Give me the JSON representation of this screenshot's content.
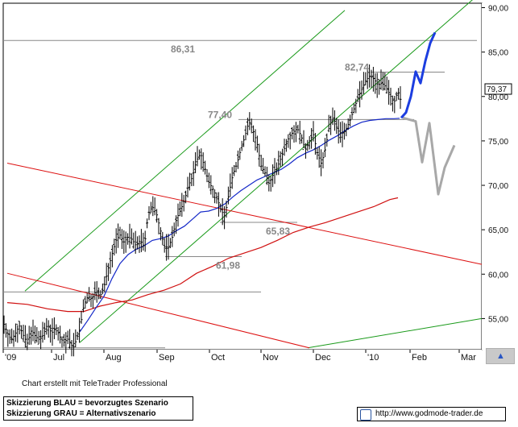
{
  "chart_data": {
    "type": "candlestick",
    "months": [
      "'09",
      "Jul",
      "Aug",
      "Sep",
      "Oct",
      "Nov",
      "Dec",
      "'10",
      "Feb",
      "Mar"
    ],
    "y_ticks": [
      "90,00",
      "85,00",
      "80,00",
      "75,00",
      "70,00",
      "65,00",
      "60,00",
      "55,00"
    ],
    "ylim": [
      51.5,
      90.5
    ],
    "last_price": "79,37",
    "levels": [
      {
        "label": "86,31",
        "value": 86.31
      },
      {
        "label": "82,74",
        "value": 82.74
      },
      {
        "label": "77,40",
        "value": 77.4
      },
      {
        "label": "65,83",
        "value": 65.83
      },
      {
        "label": "61,98",
        "value": 61.98
      }
    ],
    "support_line_value": 58.0,
    "bottom_line_value": 51.7,
    "ohlc_close_path": [
      [
        0,
        54.6
      ],
      [
        5,
        53.4
      ],
      [
        10,
        52.6
      ],
      [
        15,
        53.3
      ],
      [
        20,
        54.2
      ],
      [
        25,
        53.1
      ],
      [
        30,
        52.2
      ],
      [
        35,
        53.7
      ],
      [
        40,
        53.0
      ],
      [
        45,
        52.6
      ],
      [
        50,
        53.2
      ],
      [
        55,
        54.4
      ],
      [
        60,
        53.3
      ],
      [
        65,
        54.1
      ],
      [
        70,
        53.0
      ],
      [
        75,
        52.3
      ],
      [
        80,
        52.7
      ],
      [
        85,
        52.0
      ],
      [
        90,
        52.4
      ],
      [
        95,
        53.8
      ],
      [
        100,
        56.5
      ],
      [
        105,
        57.5
      ],
      [
        110,
        57.2
      ],
      [
        115,
        58.1
      ],
      [
        120,
        57.5
      ],
      [
        125,
        58.5
      ],
      [
        130,
        60.5
      ],
      [
        135,
        62.2
      ],
      [
        140,
        63.8
      ],
      [
        145,
        64.4
      ],
      [
        150,
        63.6
      ],
      [
        155,
        64.2
      ],
      [
        160,
        63.9
      ],
      [
        165,
        63.2
      ],
      [
        170,
        63.8
      ],
      [
        175,
        63.1
      ],
      [
        180,
        66.8
      ],
      [
        185,
        67.6
      ],
      [
        190,
        66.9
      ],
      [
        195,
        65.0
      ],
      [
        200,
        63.1
      ],
      [
        205,
        63.0
      ],
      [
        210,
        64.2
      ],
      [
        215,
        66.2
      ],
      [
        220,
        67.2
      ],
      [
        225,
        68.3
      ],
      [
        230,
        70.0
      ],
      [
        235,
        71.0
      ],
      [
        240,
        72.8
      ],
      [
        245,
        73.6
      ],
      [
        250,
        72.0
      ],
      [
        255,
        70.4
      ],
      [
        260,
        69.6
      ],
      [
        265,
        68.7
      ],
      [
        270,
        67.3
      ],
      [
        275,
        66.5
      ],
      [
        280,
        69.0
      ],
      [
        285,
        71.2
      ],
      [
        290,
        72.4
      ],
      [
        295,
        74.1
      ],
      [
        300,
        75.5
      ],
      [
        305,
        77.2
      ],
      [
        310,
        76.2
      ],
      [
        315,
        74.8
      ],
      [
        320,
        72.2
      ],
      [
        325,
        71.4
      ],
      [
        330,
        70.2
      ],
      [
        335,
        71.2
      ],
      [
        340,
        72.0
      ],
      [
        345,
        73.1
      ],
      [
        350,
        74.4
      ],
      [
        355,
        75.5
      ],
      [
        360,
        76.0
      ],
      [
        365,
        76.4
      ],
      [
        370,
        75.5
      ],
      [
        375,
        74.0
      ],
      [
        380,
        75.0
      ],
      [
        385,
        75.7
      ],
      [
        390,
        73.6
      ],
      [
        395,
        72.4
      ],
      [
        400,
        74.2
      ],
      [
        405,
        76.8
      ],
      [
        410,
        77.6
      ],
      [
        415,
        76.2
      ],
      [
        420,
        75.8
      ],
      [
        425,
        76.2
      ],
      [
        430,
        77.2
      ],
      [
        435,
        78.5
      ],
      [
        440,
        79.8
      ],
      [
        445,
        80.8
      ],
      [
        450,
        81.8
      ],
      [
        455,
        82.3
      ],
      [
        460,
        82.0
      ],
      [
        465,
        81.3
      ],
      [
        470,
        81.5
      ],
      [
        475,
        81.1
      ],
      [
        480,
        80.2
      ],
      [
        485,
        79.3
      ],
      [
        490,
        80.6
      ],
      [
        494,
        79.37
      ]
    ],
    "ma_short": [
      [
        95,
        53.5
      ],
      [
        105,
        54.8
      ],
      [
        115,
        56.2
      ],
      [
        125,
        57.5
      ],
      [
        135,
        59.5
      ],
      [
        145,
        61.2
      ],
      [
        155,
        62.2
      ],
      [
        165,
        62.8
      ],
      [
        175,
        63.2
      ],
      [
        185,
        63.8
      ],
      [
        195,
        64.0
      ],
      [
        205,
        64.3
      ],
      [
        215,
        64.9
      ],
      [
        225,
        65.4
      ],
      [
        235,
        66.2
      ],
      [
        245,
        67.0
      ],
      [
        255,
        67.1
      ],
      [
        265,
        67.4
      ],
      [
        275,
        67.9
      ],
      [
        285,
        68.7
      ],
      [
        295,
        69.4
      ],
      [
        305,
        70.0
      ],
      [
        315,
        70.6
      ],
      [
        325,
        71.0
      ],
      [
        335,
        71.4
      ],
      [
        345,
        71.8
      ],
      [
        355,
        72.4
      ],
      [
        365,
        73.1
      ],
      [
        375,
        73.6
      ],
      [
        385,
        74.0
      ],
      [
        395,
        74.5
      ],
      [
        405,
        75.1
      ],
      [
        415,
        75.6
      ],
      [
        425,
        76.2
      ],
      [
        435,
        76.7
      ],
      [
        445,
        77.1
      ],
      [
        455,
        77.3
      ],
      [
        465,
        77.4
      ],
      [
        475,
        77.5
      ],
      [
        485,
        77.5
      ],
      [
        492,
        77.55
      ]
    ],
    "ma_long": [
      [
        5,
        56.8
      ],
      [
        30,
        56.6
      ],
      [
        55,
        56.1
      ],
      [
        80,
        55.8
      ],
      [
        100,
        55.8
      ],
      [
        120,
        56.4
      ],
      [
        140,
        56.8
      ],
      [
        160,
        57.1
      ],
      [
        180,
        57.7
      ],
      [
        200,
        58.2
      ],
      [
        220,
        58.9
      ],
      [
        240,
        60.1
      ],
      [
        260,
        60.9
      ],
      [
        280,
        61.8
      ],
      [
        300,
        62.4
      ],
      [
        320,
        63.0
      ],
      [
        340,
        63.8
      ],
      [
        360,
        64.7
      ],
      [
        380,
        65.3
      ],
      [
        400,
        65.8
      ],
      [
        420,
        66.4
      ],
      [
        440,
        67.0
      ],
      [
        460,
        67.6
      ],
      [
        480,
        68.4
      ],
      [
        490,
        68.6
      ]
    ],
    "channel_lines": [
      {
        "color": "green",
        "from": [
          27,
          58.1
        ],
        "to": [
          424,
          89.7
        ]
      },
      {
        "color": "green",
        "from": [
          95,
          52.3
        ],
        "to": [
          594,
          91.8
        ]
      },
      {
        "color": "green",
        "from": [
          378,
          51.7
        ],
        "to": [
          594,
          55.0
        ]
      },
      {
        "color": "red",
        "from": [
          5,
          72.5
        ],
        "to": [
          594,
          61.1
        ]
      },
      {
        "color": "red",
        "from": [
          5,
          60.1
        ],
        "to": [
          380,
          51.7
        ]
      }
    ],
    "scenario_blue": [
      [
        494,
        77.6
      ],
      [
        500,
        78.2
      ],
      [
        506,
        80.0
      ],
      [
        512,
        82.8
      ],
      [
        518,
        81.5
      ],
      [
        524,
        84.0
      ],
      [
        530,
        86.0
      ],
      [
        536,
        87.2
      ]
    ],
    "scenario_gray": [
      [
        496,
        77.6
      ],
      [
        512,
        77.2
      ],
      [
        520,
        72.6
      ],
      [
        529,
        77.0
      ],
      [
        540,
        69.0
      ],
      [
        548,
        72.0
      ],
      [
        560,
        74.5
      ]
    ]
  },
  "footer": {
    "credit": "Chart erstellt mit TeleTrader Professional",
    "legend_blue": "Skizzierung BLAU = bevorzugtes Szenario",
    "legend_gray": "Skizzierung GRAU = Alternativszenario",
    "source": "http://www.godmode-trader.de"
  }
}
